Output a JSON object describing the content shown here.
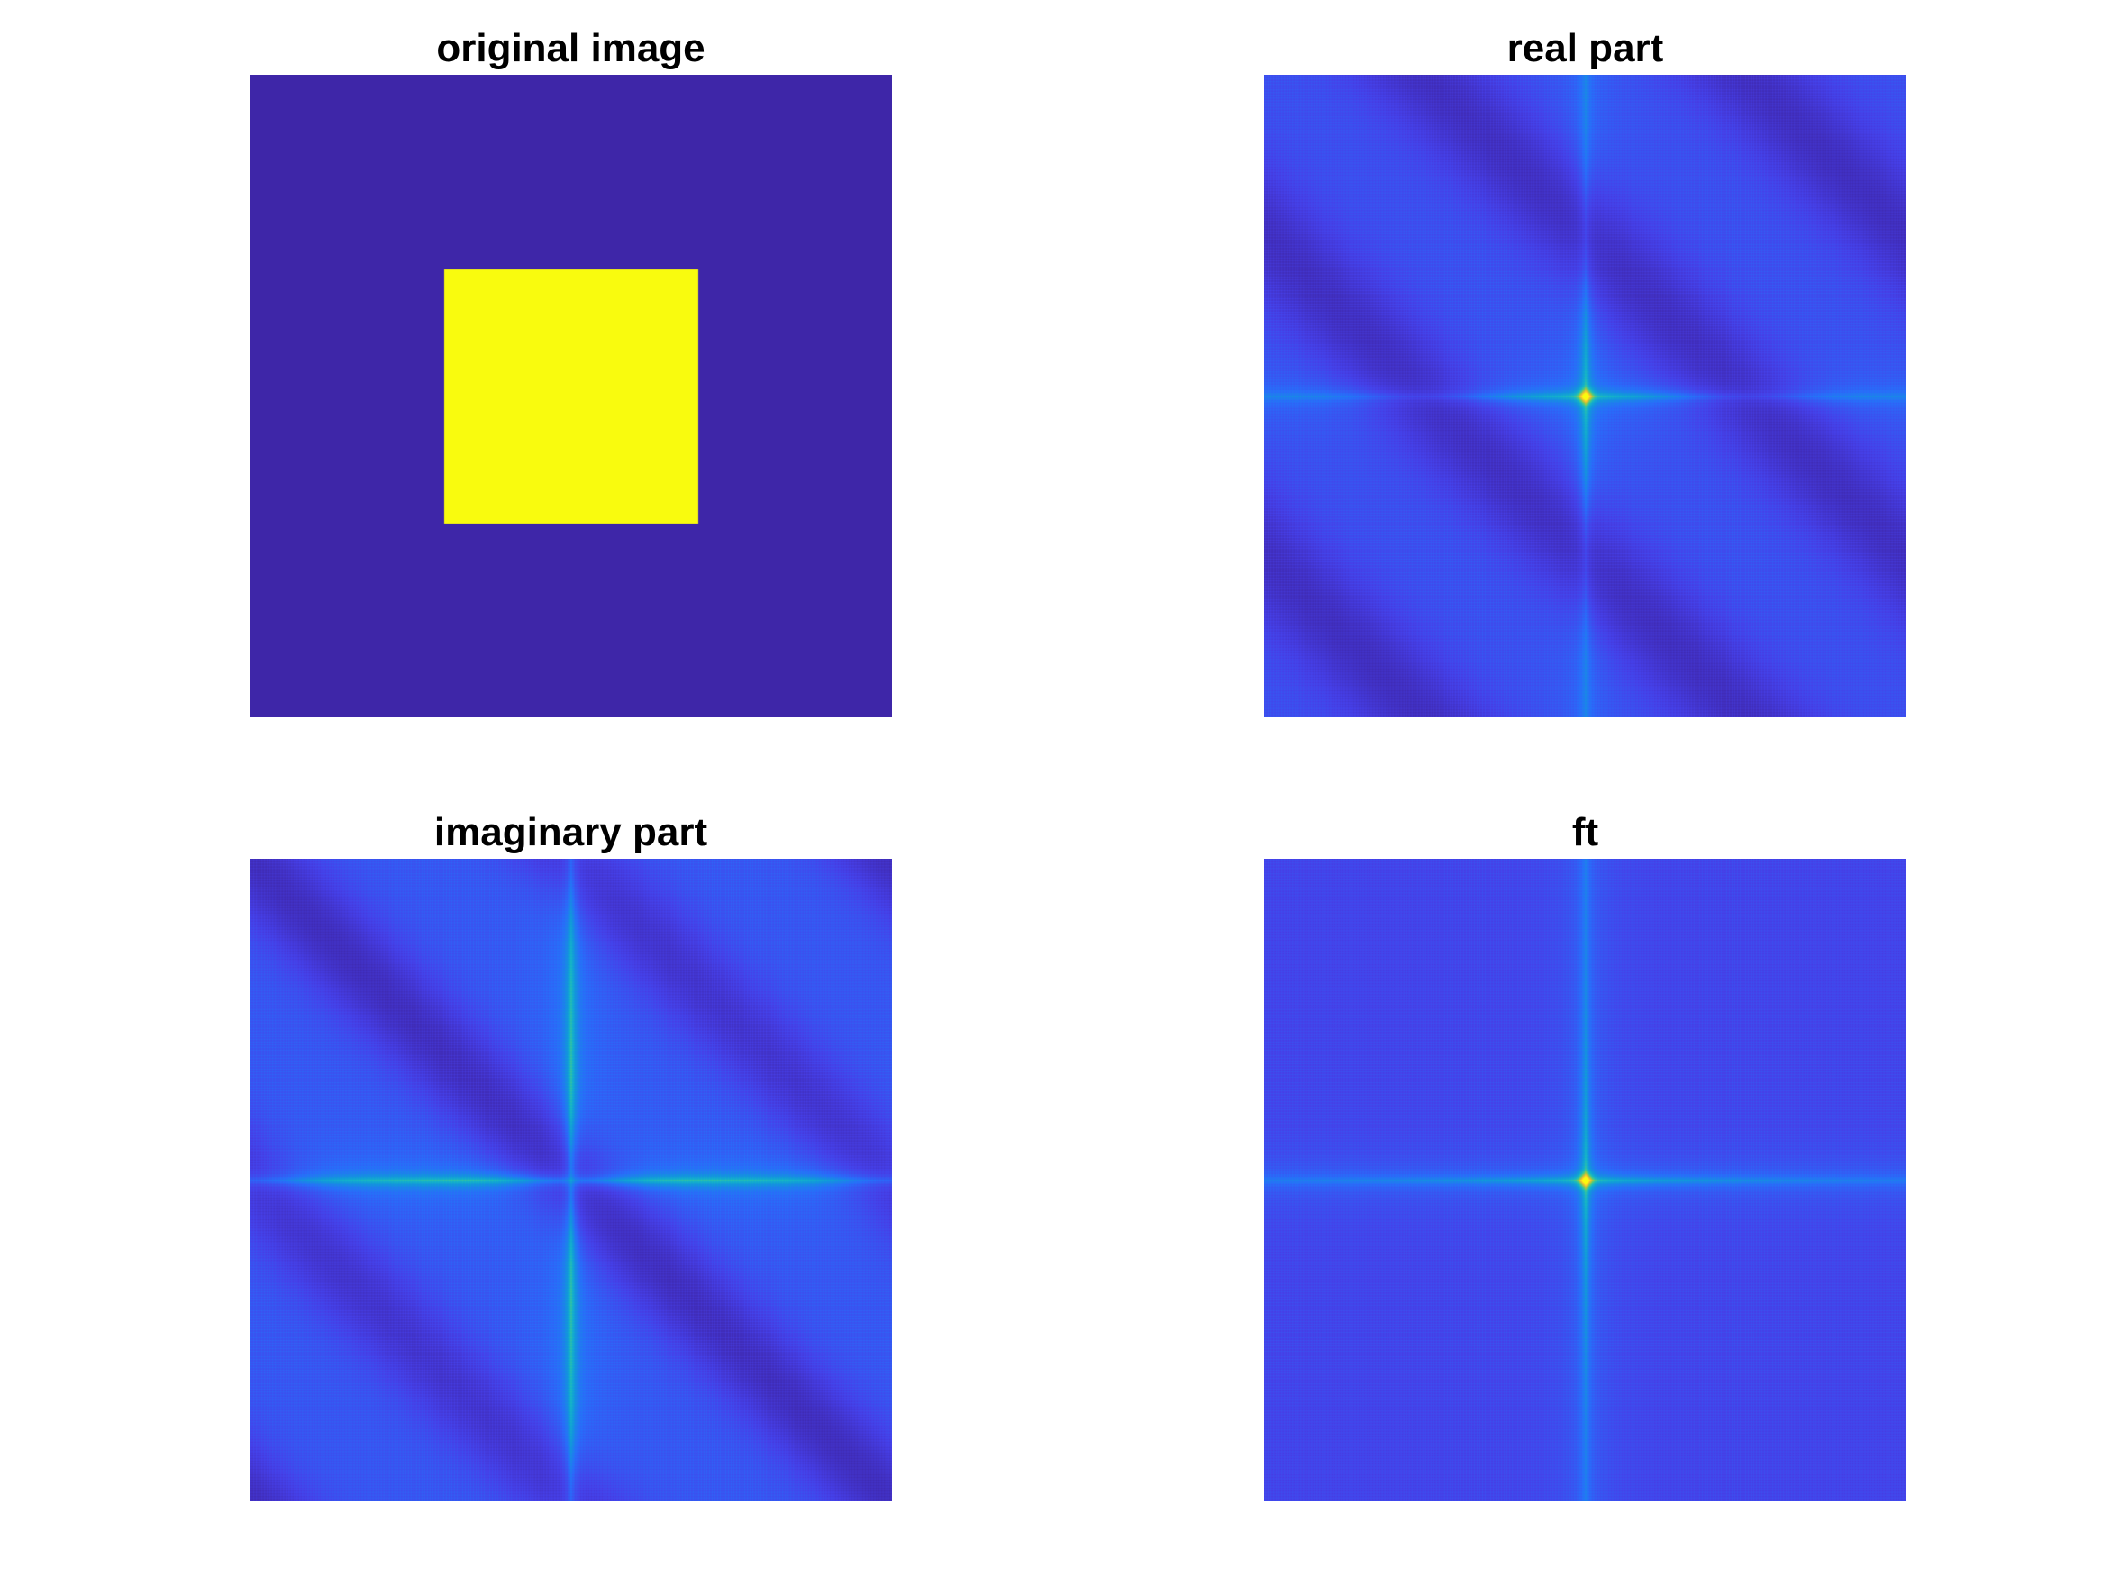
{
  "chart_data": [
    {
      "type": "heatmap",
      "title": "original image",
      "colormap": "parula",
      "render": "square",
      "grid": false,
      "axes_visible": false
    },
    {
      "type": "heatmap",
      "title": "real part",
      "colormap": "parula",
      "render": "real",
      "grid": false,
      "axes_visible": false
    },
    {
      "type": "heatmap",
      "title": "imaginary part",
      "colormap": "parula",
      "render": "imag",
      "grid": false,
      "axes_visible": false
    },
    {
      "type": "heatmap",
      "title": "ft",
      "colormap": "parula",
      "render": "abs",
      "grid": false,
      "axes_visible": false
    }
  ],
  "colors": {
    "background": "#ffffff",
    "parula_low": "#3e26a8",
    "parula_high": "#f9fb0e"
  }
}
